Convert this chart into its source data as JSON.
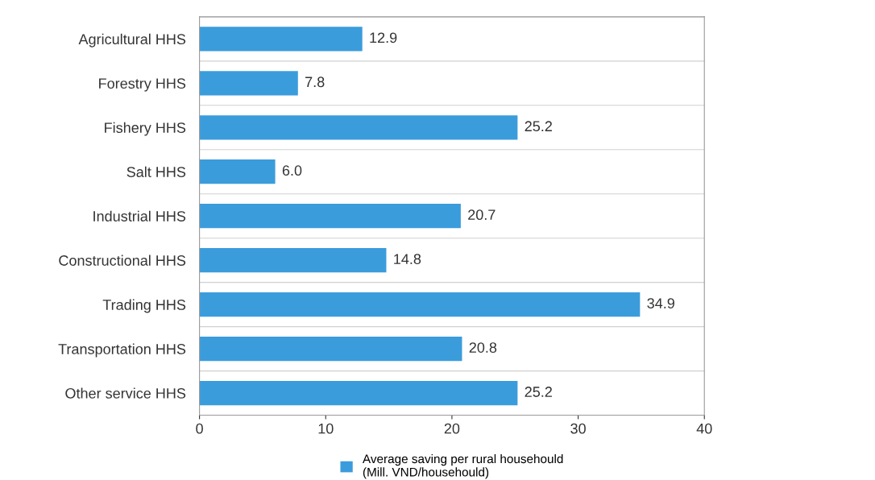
{
  "chart_data": {
    "type": "bar",
    "orientation": "horizontal",
    "categories": [
      "Agricultural HHS",
      "Forestry HHS",
      "Fishery HHS",
      "Salt HHS",
      "Industrial HHS",
      "Constructional HHS",
      "Trading HHS",
      "Transportation HHS",
      "Other service HHS"
    ],
    "series": [
      {
        "name": "Average saving per rural househould\n(Mill. VND/househould)",
        "color": "#3b9cdc",
        "values": [
          12.9,
          7.8,
          25.2,
          6.0,
          20.7,
          14.8,
          34.9,
          20.8,
          25.2
        ],
        "value_labels": [
          "12.9",
          "7.8",
          "25.2",
          "6.0",
          "20.7",
          "14.8",
          "34.9",
          "20.8",
          "25.2"
        ]
      }
    ],
    "xlim": [
      0,
      40
    ],
    "xticks": [
      0,
      10,
      20,
      30,
      40
    ],
    "grid": "y",
    "legend": "bottom"
  }
}
